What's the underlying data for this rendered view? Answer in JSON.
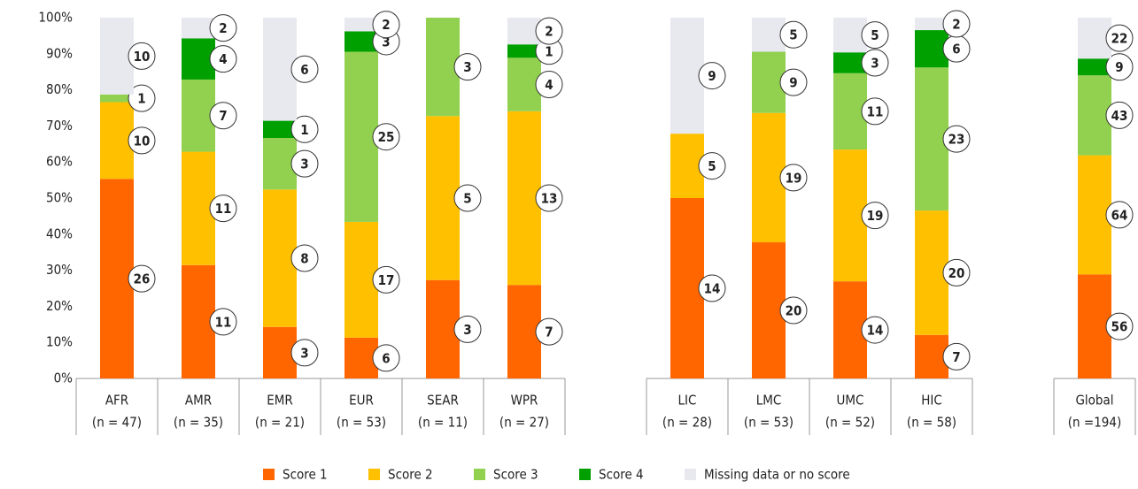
{
  "chart_data": {
    "type": "stacked_bar_100",
    "categories": [
      "AFR",
      "AMR",
      "EMR",
      "EUR",
      "SEAR",
      "WPR",
      "LIC",
      "LMC",
      "UMC",
      "HIC",
      "Global"
    ],
    "category_notes": [
      "(n = 47)",
      "(n = 35)",
      "(n = 21)",
      "(n = 53)",
      "(n = 11)",
      "(n = 27)",
      "(n = 28)",
      "(n = 53)",
      "(n = 52)",
      "(n = 58)",
      "(n =194)"
    ],
    "series": [
      {
        "name": "Score 1",
        "color": "#ff6600",
        "values": [
          26,
          11,
          3,
          6,
          3,
          7,
          14,
          20,
          14,
          7,
          56
        ]
      },
      {
        "name": "Score 2",
        "color": "#ffc000",
        "values": [
          10,
          11,
          8,
          17,
          5,
          13,
          5,
          19,
          19,
          20,
          64
        ]
      },
      {
        "name": "Score 3",
        "color": "#92d050",
        "values": [
          1,
          7,
          3,
          25,
          3,
          4,
          null,
          9,
          11,
          23,
          43
        ]
      },
      {
        "name": "Score 4",
        "color": "#00a000",
        "values": [
          null,
          4,
          1,
          3,
          null,
          1,
          null,
          null,
          3,
          6,
          9
        ]
      },
      {
        "name": "Missing data or no score",
        "color": "#e8e8ef",
        "values": [
          10,
          2,
          6,
          2,
          null,
          2,
          9,
          5,
          5,
          2,
          22
        ]
      }
    ],
    "ylim": [
      0,
      100
    ],
    "yticks": [
      {
        "value": 0,
        "label": "0%"
      },
      {
        "value": 10,
        "label": "10%"
      },
      {
        "value": 20,
        "label": "20%"
      },
      {
        "value": 30,
        "label": "30%"
      },
      {
        "value": 40,
        "label": "40%"
      },
      {
        "value": 50,
        "label": "50%"
      },
      {
        "value": 60,
        "label": "60%"
      },
      {
        "value": 70,
        "label": "70%"
      },
      {
        "value": 80,
        "label": "80%"
      },
      {
        "value": 90,
        "label": "90%"
      },
      {
        "value": 100,
        "label": "100%"
      }
    ],
    "legend": "bottom"
  }
}
